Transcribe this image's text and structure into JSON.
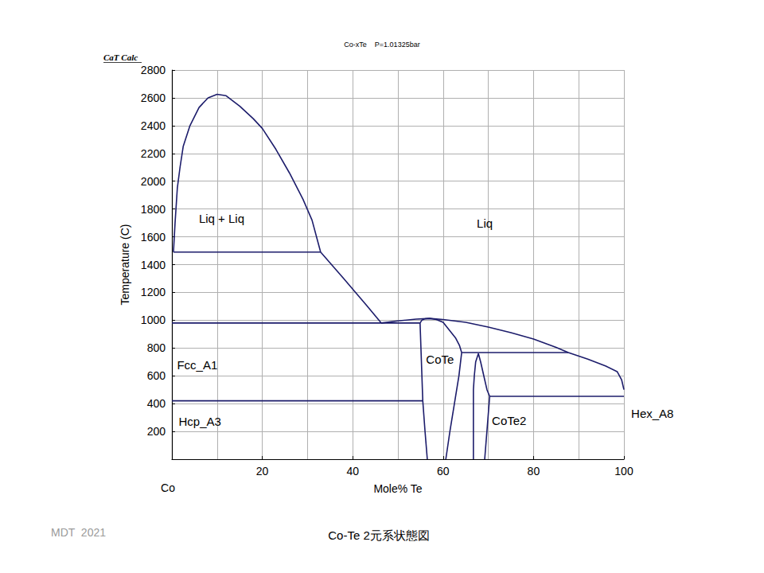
{
  "chart_data": {
    "type": "line",
    "title": "Co-xTe    P=1.01325bar",
    "source": "CaT Calc",
    "footer": "MDT  2021",
    "caption": "Co-Te 2元系状態図",
    "x_start_label": "Co",
    "x_label": "Mole% Te",
    "y_label": "Temperature (C)",
    "xlim": [
      0,
      100
    ],
    "xticks": [
      20,
      40,
      60,
      80,
      100
    ],
    "ylim": [
      0,
      2800
    ],
    "yticks": [
      200,
      400,
      600,
      800,
      1000,
      1200,
      1400,
      1600,
      1800,
      2000,
      2200,
      2400,
      2600,
      2800
    ],
    "grid": true,
    "color": "#1c1c6b",
    "series": [
      {
        "values": [
          [
            0.35,
            1490
          ],
          [
            0.7,
            1700
          ],
          [
            1.2,
            1950
          ],
          [
            1.8,
            2100
          ],
          [
            2.5,
            2250
          ],
          [
            4,
            2400
          ],
          [
            6,
            2530
          ],
          [
            8,
            2600
          ],
          [
            10,
            2625
          ],
          [
            12,
            2615
          ],
          [
            15,
            2540
          ],
          [
            18,
            2450
          ],
          [
            20,
            2380
          ],
          [
            23,
            2230
          ],
          [
            26,
            2060
          ],
          [
            29,
            1870
          ],
          [
            31,
            1720
          ],
          [
            32.9,
            1490
          ]
        ]
      },
      {
        "values": [
          [
            0.35,
            1490
          ],
          [
            32.9,
            1490
          ]
        ]
      },
      {
        "values": [
          [
            32.9,
            1490
          ],
          [
            38,
            1300
          ],
          [
            43,
            1110
          ],
          [
            46.3,
            980
          ]
        ]
      },
      {
        "values": [
          [
            0,
            980
          ],
          [
            54.9,
            980
          ]
        ]
      },
      {
        "values": [
          [
            46.3,
            980
          ],
          [
            50,
            995
          ],
          [
            54,
            1008
          ],
          [
            57,
            1013
          ],
          [
            60,
            1005
          ],
          [
            65,
            985
          ],
          [
            70,
            950
          ],
          [
            75,
            910
          ],
          [
            80,
            865
          ],
          [
            85,
            805
          ],
          [
            87.7,
            767
          ],
          [
            92,
            720
          ],
          [
            96,
            670
          ],
          [
            98.5,
            630
          ],
          [
            99.5,
            570
          ],
          [
            100,
            500
          ]
        ]
      },
      {
        "values": [
          [
            54.9,
            980
          ],
          [
            55.3,
            1000
          ],
          [
            56,
            1010
          ],
          [
            57,
            1013
          ],
          [
            58.5,
            1005
          ],
          [
            60,
            985
          ],
          [
            61.4,
            928
          ],
          [
            62.8,
            870
          ],
          [
            63.6,
            820
          ],
          [
            64.1,
            767
          ]
        ]
      },
      {
        "values": [
          [
            54.9,
            980
          ],
          [
            55.2,
            700
          ],
          [
            55.5,
            420
          ],
          [
            56,
            200
          ],
          [
            56.5,
            0
          ]
        ]
      },
      {
        "values": [
          [
            0,
            420
          ],
          [
            55.5,
            420
          ]
        ]
      },
      {
        "values": [
          [
            64.1,
            767
          ],
          [
            63.5,
            600
          ],
          [
            62.5,
            400
          ],
          [
            61.5,
            200
          ],
          [
            60.6,
            0
          ]
        ]
      },
      {
        "values": [
          [
            64.1,
            767
          ],
          [
            87.7,
            767
          ]
        ]
      },
      {
        "values": [
          [
            67.8,
            760
          ],
          [
            67.2,
            700
          ],
          [
            66.9,
            600
          ],
          [
            66.7,
            500
          ],
          [
            66.7,
            0
          ]
        ]
      },
      {
        "values": [
          [
            67.8,
            760
          ],
          [
            68.3,
            700
          ],
          [
            69,
            600
          ],
          [
            69.7,
            500
          ],
          [
            70.3,
            452
          ],
          [
            69.2,
            0
          ]
        ]
      },
      {
        "values": [
          [
            70.3,
            452
          ],
          [
            100,
            452
          ]
        ]
      }
    ],
    "annotations": [
      {
        "text": "Liq + Liq",
        "x": 11,
        "y": 1730
      },
      {
        "text": "Liq",
        "x": 69.2,
        "y": 1695
      },
      {
        "text": "Fcc_A1",
        "x": 5.6,
        "y": 680
      },
      {
        "text": "Hcp_A3",
        "x": 6.2,
        "y": 270
      },
      {
        "text": "CoTe",
        "x": 59.3,
        "y": 720
      },
      {
        "text": "CoTe2",
        "x": 74.6,
        "y": 275
      },
      {
        "text": "Hex_A8",
        "x": 106.3,
        "y": 330
      }
    ]
  }
}
